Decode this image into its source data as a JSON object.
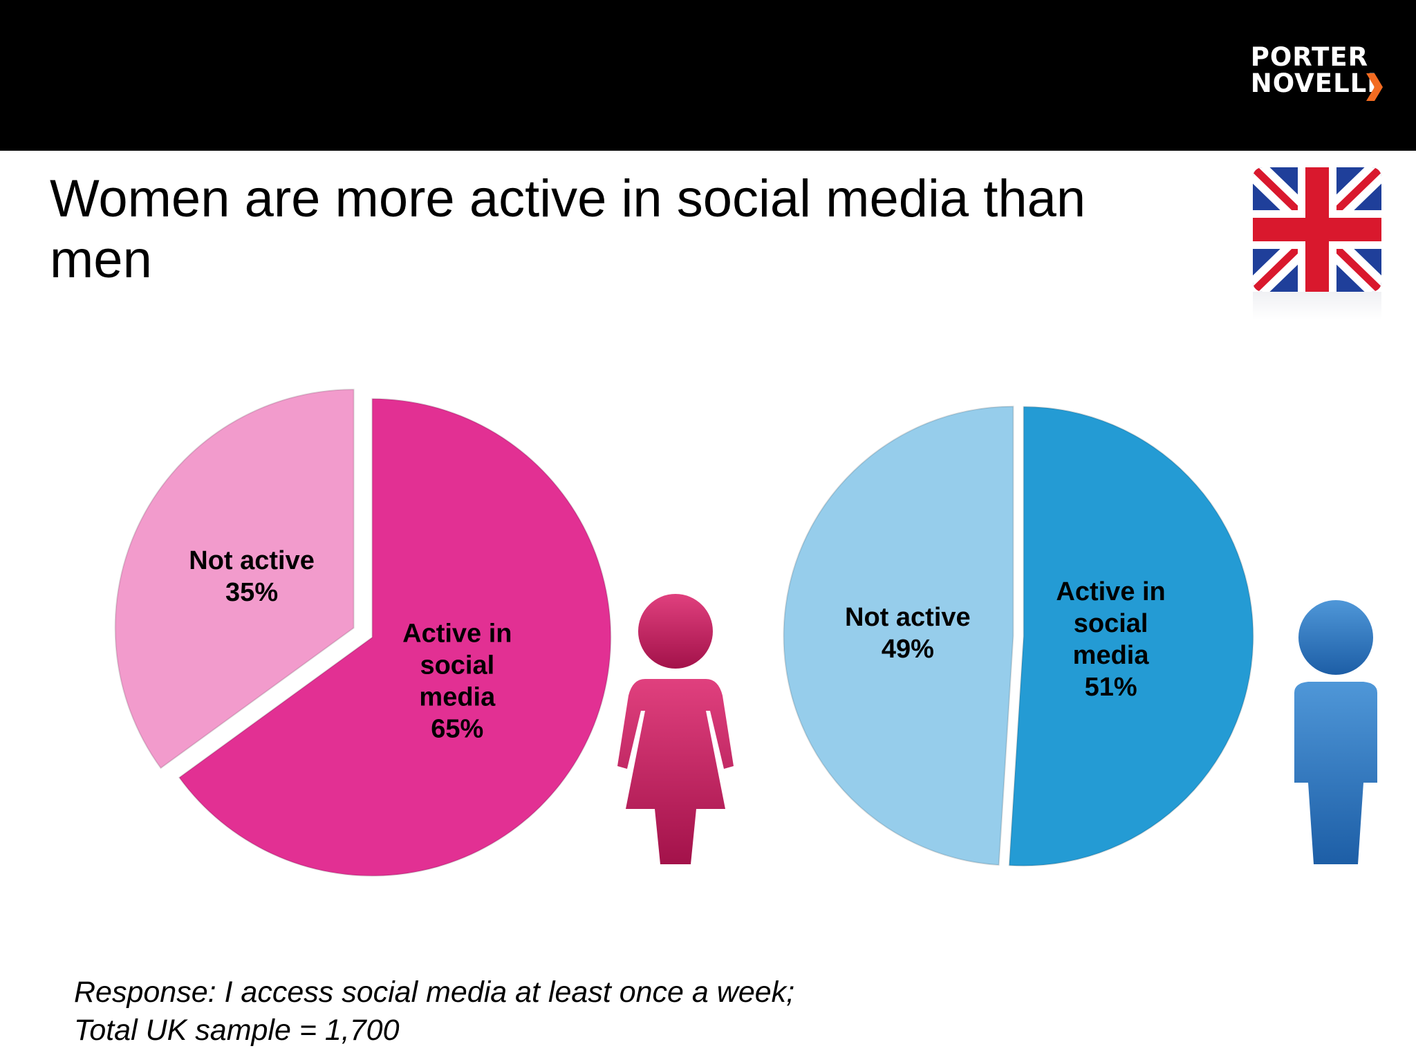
{
  "header": {
    "logo_line1": "PORTER",
    "logo_line2": "NOVELLI",
    "logo_icon": "chevron-right-icon",
    "accent_color": "#f26b21"
  },
  "title": "Women are more active in social media than men",
  "flag_icon": "union-jack-flag-icon",
  "chart_data": [
    {
      "type": "pie",
      "group_icon": "woman-icon",
      "slices": [
        {
          "lines": [
            "Active in",
            "social",
            "media",
            "65%"
          ],
          "value": 65,
          "color": "#e23093"
        },
        {
          "lines": [
            "Not active",
            "35%"
          ],
          "value": 35,
          "color": "#f29bcc"
        }
      ]
    },
    {
      "type": "pie",
      "group_icon": "man-icon",
      "slices": [
        {
          "lines": [
            "Active in",
            "social",
            "media",
            "51%"
          ],
          "value": 51,
          "color": "#249bd4"
        },
        {
          "lines": [
            "Not active",
            "49%"
          ],
          "value": 49,
          "color": "#96cdeb"
        }
      ]
    }
  ],
  "footnote": {
    "line1": "Response: I access social media at least once a week;",
    "line2": "Total UK sample = 1,700"
  }
}
